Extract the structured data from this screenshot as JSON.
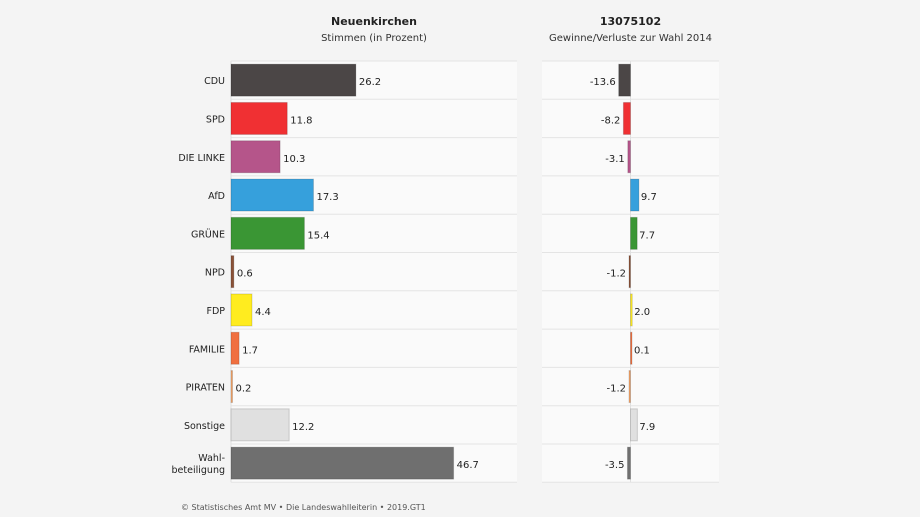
{
  "chart_data": [
    {
      "type": "bar",
      "orientation": "horizontal",
      "title": "Neuenkirchen",
      "subtitle": "Stimmen (in Prozent)",
      "categories": [
        "CDU",
        "SPD",
        "DIE LINKE",
        "AfD",
        "GRÜNE",
        "NPD",
        "FDP",
        "FAMILIE",
        "PIRATEN",
        "Sonstige",
        "Wahl-\nbeteiligung"
      ],
      "values": [
        26.2,
        11.8,
        10.3,
        17.3,
        15.4,
        0.6,
        4.4,
        1.7,
        0.2,
        12.2,
        46.7
      ],
      "value_labels": [
        "26.2",
        "11.8",
        "10.3",
        "17.3",
        "15.4",
        "0.6",
        "4.4",
        "1.7",
        "0.2",
        "12.2",
        "46.7"
      ],
      "xlim": [
        0,
        60
      ],
      "grid": false
    },
    {
      "type": "bar",
      "orientation": "horizontal",
      "title": "13075102",
      "subtitle": "Gewinne/Verluste zur Wahl 2014",
      "categories": [
        "CDU",
        "SPD",
        "DIE LINKE",
        "AfD",
        "GRÜNE",
        "NPD",
        "FDP",
        "FAMILIE",
        "PIRATEN",
        "Sonstige",
        "Wahl-\nbeteiligung"
      ],
      "values": [
        -13.6,
        -8.2,
        -3.1,
        9.7,
        7.7,
        -1.2,
        2.0,
        0.1,
        -1.2,
        7.9,
        -3.5
      ],
      "value_labels": [
        "-13.6",
        "-8.2",
        "-3.1",
        "9.7",
        "7.7",
        "-1.2",
        "2.0",
        "0.1",
        "-1.2",
        "7.9",
        "-3.5"
      ],
      "xlim": [
        -102,
        102
      ],
      "grid": false
    }
  ],
  "colors": [
    "#4b4646",
    "#f03033",
    "#b5558a",
    "#36a0dc",
    "#3a9634",
    "#8a5238",
    "#ffec1f",
    "#f07040",
    "#f5a468",
    "#e0e0e0",
    "#6f6f6f"
  ],
  "footer": "© Statistisches Amt MV • Die Landeswahlleiterin • 2019.GT1"
}
